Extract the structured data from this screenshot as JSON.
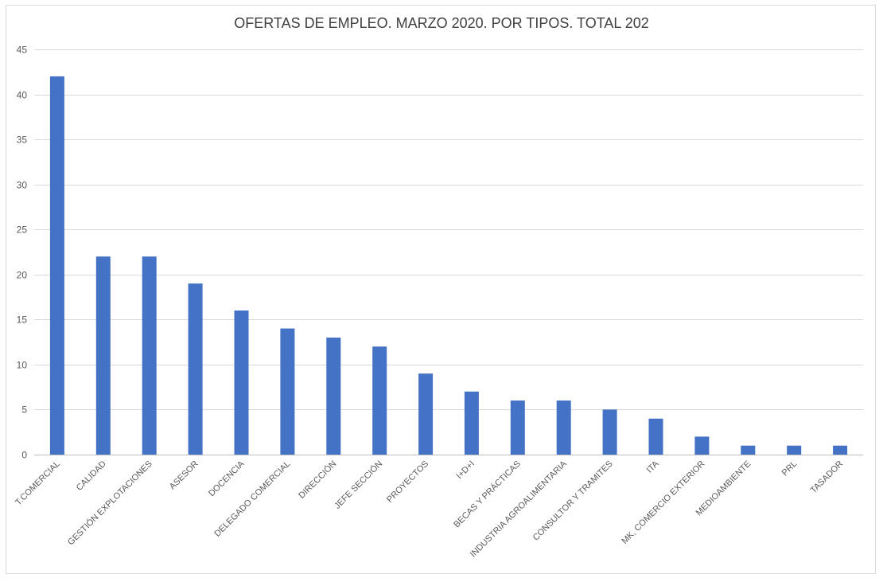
{
  "chart_data": {
    "type": "bar",
    "title": "OFERTAS DE EMPLEO. MARZO 2020. POR TIPOS. TOTAL 202",
    "xlabel": "",
    "ylabel": "",
    "categories": [
      "T.COMERCIAL",
      "CALIDAD",
      "GESTIÓN EXPLOTACIONES",
      "ASESOR",
      "DOCENCIA",
      "DELEGADO COMERCIAL",
      "DIRECCIÓN",
      "JEFE SECCIÓN",
      "PROYECTOS",
      "I+D+I",
      "BECAS Y PRÁCTICAS",
      "INDUSTRIA AGROALIMENTARIA",
      "CONSULTOR Y TRAMITES",
      "ITA",
      "MK, COMERCIO EXTERIOR",
      "MEDIOAMBIENTE",
      "PRL",
      "TASADOR"
    ],
    "values": [
      42,
      22,
      22,
      19,
      16,
      14,
      13,
      12,
      9,
      7,
      6,
      6,
      5,
      4,
      2,
      1,
      1,
      1
    ],
    "ylim": [
      0,
      45
    ],
    "yticks": [
      0,
      5,
      10,
      15,
      20,
      25,
      30,
      35,
      40,
      45
    ],
    "grid": true,
    "legend": "none",
    "bar_color": "#4472c4"
  }
}
